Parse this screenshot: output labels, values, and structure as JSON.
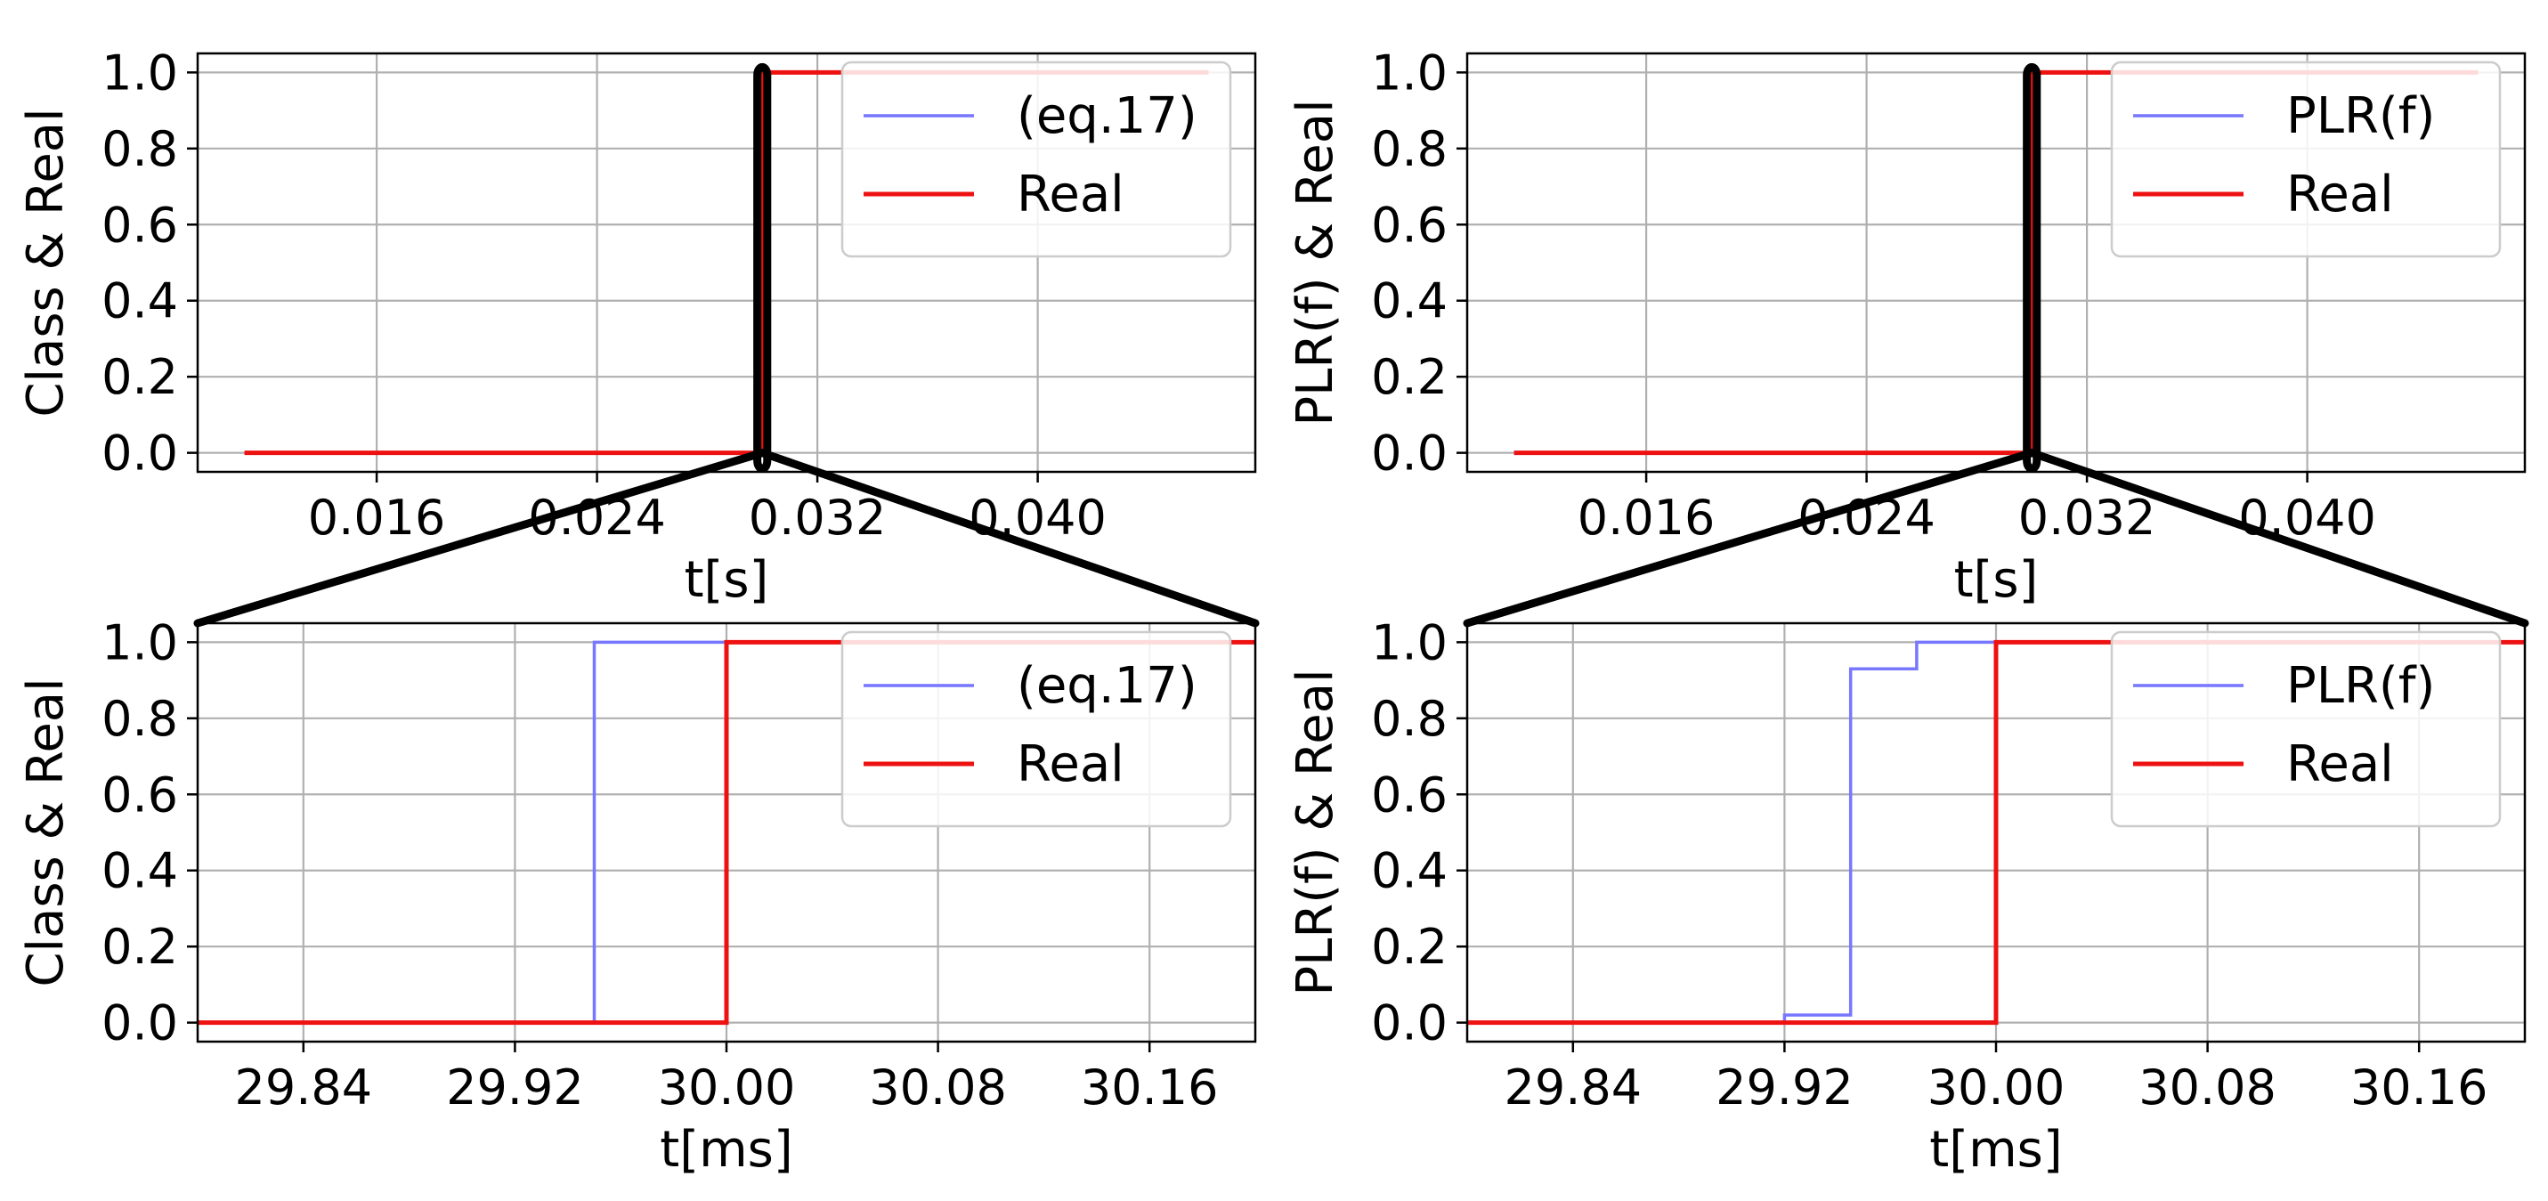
{
  "colors": {
    "series_model": "#7777ff",
    "series_real": "#ee1111",
    "grid": "#b0b0b0",
    "zoom_lines": "#000000",
    "legend_border": "#cccccc"
  },
  "chart_data": [
    {
      "type": "line",
      "panel": "top-left",
      "xlabel": "t[s]",
      "ylabel": "Class & Real",
      "xlim": [
        0.0095,
        0.0479
      ],
      "ylim": [
        -0.05,
        1.05
      ],
      "xticks": [
        0.016,
        0.024,
        0.032,
        0.04
      ],
      "xtick_labels": [
        "0.016",
        "0.024",
        "0.032",
        "0.040"
      ],
      "yticks": [
        0.0,
        0.2,
        0.4,
        0.6,
        0.8,
        1.0
      ],
      "ytick_labels": [
        "0.0",
        "0.2",
        "0.4",
        "0.6",
        "0.8",
        "1.0"
      ],
      "grid": true,
      "legend": "upper right",
      "series": [
        {
          "name": "(eq.17)",
          "color": "series_model",
          "x": [
            0.0112,
            0.02995,
            0.02995,
            0.0462
          ],
          "y": [
            0,
            0,
            1,
            1
          ]
        },
        {
          "name": "Real",
          "color": "series_real",
          "x": [
            0.0112,
            0.03,
            0.03,
            0.0462
          ],
          "y": [
            0,
            0,
            1,
            1
          ]
        }
      ],
      "zoom_box": {
        "x": [
          0.02982,
          0.03018
        ],
        "y": [
          0,
          1
        ]
      }
    },
    {
      "type": "line",
      "panel": "top-right",
      "xlabel": "t[s]",
      "ylabel": "PLR(f) & Real",
      "xlim": [
        0.0095,
        0.0479
      ],
      "ylim": [
        -0.05,
        1.05
      ],
      "xticks": [
        0.016,
        0.024,
        0.032,
        0.04
      ],
      "xtick_labels": [
        "0.016",
        "0.024",
        "0.032",
        "0.040"
      ],
      "yticks": [
        0.0,
        0.2,
        0.4,
        0.6,
        0.8,
        1.0
      ],
      "ytick_labels": [
        "0.0",
        "0.2",
        "0.4",
        "0.6",
        "0.8",
        "1.0"
      ],
      "grid": true,
      "legend": "upper right",
      "series": [
        {
          "name": "PLR(f)",
          "color": "series_model",
          "x": [
            0.0112,
            0.02995,
            0.02995,
            0.0462
          ],
          "y": [
            0,
            0,
            1,
            1
          ]
        },
        {
          "name": "Real",
          "color": "series_real",
          "x": [
            0.0112,
            0.03,
            0.03,
            0.0462
          ],
          "y": [
            0,
            0,
            1,
            1
          ]
        }
      ],
      "zoom_box": {
        "x": [
          0.02982,
          0.03018
        ],
        "y": [
          0,
          1
        ]
      }
    },
    {
      "type": "line",
      "panel": "bottom-left",
      "xlabel": "t[ms]",
      "ylabel": "Class & Real",
      "xlim": [
        29.8,
        30.2
      ],
      "ylim": [
        -0.05,
        1.05
      ],
      "xticks": [
        29.84,
        29.92,
        30.0,
        30.08,
        30.16
      ],
      "xtick_labels": [
        "29.84",
        "29.92",
        "30.00",
        "30.08",
        "30.16"
      ],
      "yticks": [
        0.0,
        0.2,
        0.4,
        0.6,
        0.8,
        1.0
      ],
      "ytick_labels": [
        "0.0",
        "0.2",
        "0.4",
        "0.6",
        "0.8",
        "1.0"
      ],
      "grid": true,
      "legend": "upper right",
      "series": [
        {
          "name": "(eq.17)",
          "color": "series_model",
          "x": [
            29.8,
            29.95,
            29.95,
            30.2
          ],
          "y": [
            0,
            0,
            1,
            1
          ]
        },
        {
          "name": "Real",
          "color": "series_real",
          "x": [
            29.8,
            30.0,
            30.0,
            30.2
          ],
          "y": [
            0,
            0,
            1,
            1
          ]
        }
      ]
    },
    {
      "type": "line",
      "panel": "bottom-right",
      "xlabel": "t[ms]",
      "ylabel": "PLR(f) & Real",
      "xlim": [
        29.8,
        30.2
      ],
      "ylim": [
        -0.05,
        1.05
      ],
      "xticks": [
        29.84,
        29.92,
        30.0,
        30.08,
        30.16
      ],
      "xtick_labels": [
        "29.84",
        "29.92",
        "30.00",
        "30.08",
        "30.16"
      ],
      "yticks": [
        0.0,
        0.2,
        0.4,
        0.6,
        0.8,
        1.0
      ],
      "ytick_labels": [
        "0.0",
        "0.2",
        "0.4",
        "0.6",
        "0.8",
        "1.0"
      ],
      "grid": true,
      "legend": "upper right",
      "series": [
        {
          "name": "PLR(f)",
          "color": "series_model",
          "x": [
            29.8,
            29.92,
            29.92,
            29.945,
            29.945,
            29.97,
            29.97,
            30.2
          ],
          "y": [
            0,
            0,
            0.02,
            0.02,
            0.93,
            0.93,
            1,
            1
          ]
        },
        {
          "name": "Real",
          "color": "series_real",
          "x": [
            29.8,
            30.0,
            30.0,
            30.2
          ],
          "y": [
            0,
            0,
            1,
            1
          ]
        }
      ]
    }
  ]
}
